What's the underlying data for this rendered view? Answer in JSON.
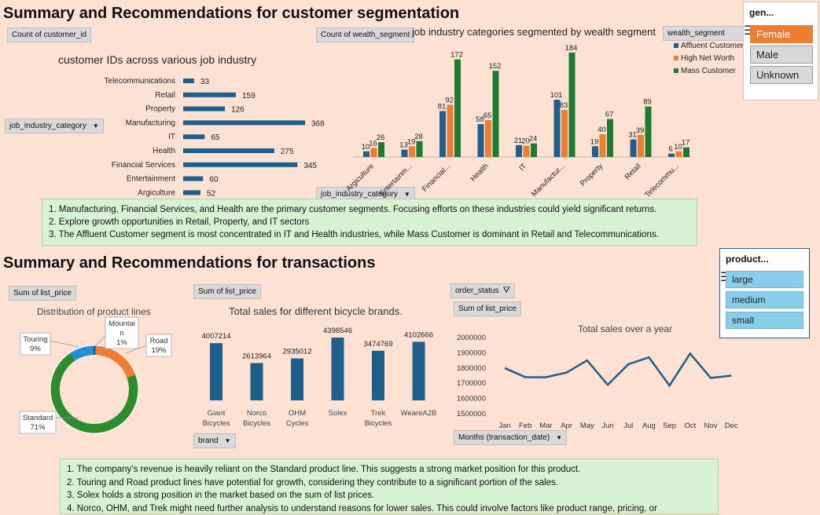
{
  "section1_title": "Summary and Recommendations for customer segmentation",
  "section2_title": "Summary and Recommendations for transactions",
  "pivot_buttons": {
    "count_customer_id": "Count of customer_id",
    "job_industry_category": "job_industry_category",
    "count_wealth_segment": "Count of wealth_segment",
    "wealth_segment": "wealth_segment",
    "job_industry_category2": "job_industry_category",
    "sum_list_price_pie": "Sum of list_price",
    "sum_list_price_brand": "Sum of list_price",
    "brand": "brand",
    "order_status": "order_status",
    "sum_list_price_line": "Sum of list_price",
    "months": "Months (transaction_date)"
  },
  "gender_slicer": {
    "header": "gen...",
    "items": [
      "Female",
      "Male",
      "Unknown"
    ]
  },
  "product_slicer": {
    "header": "product...",
    "items": [
      "large",
      "medium",
      "small"
    ]
  },
  "notes1": [
    "1. Manufacturing, Financial Services, and Health are the primary customer segments. Focusing efforts on these industries could yield significant returns.",
    "2. Explore growth opportunities in Retail, Property, and IT sectors",
    "3.  The Affluent Customer segment is most concentrated in IT and Health industries, while Mass Customer is dominant in Retail and Telecommunications."
  ],
  "notes2": [
    "1. The company’s revenue is heavily reliant on the Standard product line. This suggests a strong market position for this product.",
    "2. Touring and Road product lines have potential for growth, considering they contribute to a significant portion of the sales.",
    "3. Solex holds a strong position in the market based on the sum of list prices.",
    "4. Norco, OHM, and Trek might need further analysis to understand reasons for lower sales. This could involve factors like product range, pricing, or"
  ],
  "chart_data": [
    {
      "type": "bar",
      "orientation": "horizontal",
      "title": "customer IDs across various job industry",
      "categories": [
        "Telecommunications",
        "Retail",
        "Property",
        "Manufacturing",
        "IT",
        "Health",
        "Financial Services",
        "Entertainment",
        "Argiculture"
      ],
      "values": [
        33,
        159,
        126,
        368,
        65,
        275,
        345,
        60,
        52
      ],
      "color": "#1f5f8b"
    },
    {
      "type": "bar",
      "title": "job industry categories segmented by wealth segment",
      "categories": [
        "Argiculture",
        "Entertainm...",
        "Financial...",
        "Health",
        "IT",
        "Manufactur...",
        "Property",
        "Retail",
        "Telecommu..."
      ],
      "series": [
        {
          "name": "Affluent Customer",
          "color": "#1f5f8b",
          "values": [
            10,
            13,
            81,
            58,
            21,
            101,
            19,
            31,
            6
          ]
        },
        {
          "name": "High Net Worth",
          "color": "#ed7d31",
          "values": [
            16,
            19,
            92,
            65,
            20,
            83,
            40,
            39,
            10
          ]
        },
        {
          "name": "Mass Customer",
          "color": "#1e7b34",
          "values": [
            26,
            28,
            172,
            152,
            24,
            184,
            67,
            89,
            17
          ]
        }
      ],
      "legend": "top-right"
    },
    {
      "type": "pie",
      "title": "Distribution of product lines",
      "labels": [
        "Standard",
        "Touring",
        "Mountain",
        "Road"
      ],
      "values": [
        71,
        9,
        1,
        19
      ],
      "display_labels": [
        [
          "Standard",
          "71%"
        ],
        [
          "Touring",
          "9%"
        ],
        [
          "Mountai",
          "n",
          "1%"
        ],
        [
          "Road",
          "19%"
        ]
      ],
      "colors": [
        "#2e8b2e",
        "#1e90d6",
        "#1f5f8b",
        "#ed7d31"
      ]
    },
    {
      "type": "bar",
      "title": "Total sales for different bicycle brands.",
      "categories": [
        [
          "Giant",
          "Bicycles"
        ],
        [
          "Norco",
          "Bicycles"
        ],
        [
          "OHM",
          "Cycles"
        ],
        [
          "Solex"
        ],
        [
          "Trek",
          "Bicycles"
        ],
        [
          "WeareA2B"
        ]
      ],
      "values": [
        4007214,
        2613964,
        2935012,
        4398546,
        3474769,
        4102666
      ],
      "color": "#1f5f8b"
    },
    {
      "type": "line",
      "title": "Total sales over a year",
      "x": [
        "Jan",
        "Feb",
        "Mar",
        "Apr",
        "May",
        "Jun",
        "Jul",
        "Aug",
        "Sep",
        "Oct",
        "Nov",
        "Dec"
      ],
      "y": [
        1800000,
        1740000,
        1740000,
        1770000,
        1850000,
        1690000,
        1825000,
        1870000,
        1685000,
        1895000,
        1735000,
        1750000
      ],
      "yticks": [
        "2000000",
        "1900000",
        "1800000",
        "1700000",
        "1600000",
        "1500000"
      ],
      "ylim": [
        1500000,
        2000000
      ],
      "color": "#1f5f8b"
    }
  ]
}
